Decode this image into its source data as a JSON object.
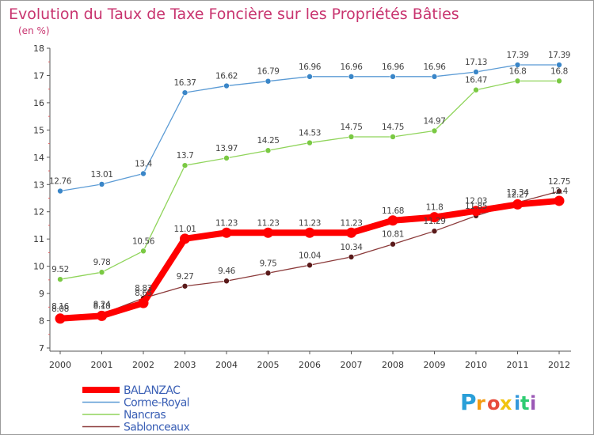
{
  "chart_data": {
    "type": "line",
    "title": "Evolution du Taux de Taxe Foncière sur les Propriétés Bâties",
    "subtitle": "(en %)",
    "xlabel": "",
    "ylabel": "",
    "ylim": [
      7,
      18
    ],
    "yticks": [
      "7",
      "8",
      "9",
      "10",
      "11",
      "12",
      "13",
      "14",
      "15",
      "16",
      "17",
      "18"
    ],
    "categories": [
      "2000",
      "2001",
      "2002",
      "2003",
      "2004",
      "2005",
      "2006",
      "2007",
      "2008",
      "2009",
      "2010",
      "2011",
      "2012"
    ],
    "series": [
      {
        "name": "Corme-Royal",
        "color": "#5b9bd5",
        "marker": "#3a86c8",
        "values": [
          12.76,
          13.01,
          13.4,
          16.37,
          16.62,
          16.79,
          16.96,
          16.96,
          16.96,
          16.96,
          17.13,
          17.39,
          17.39
        ],
        "labels": [
          "12.76",
          "13.01",
          "13.4",
          "16.37",
          "16.62",
          "16.79",
          "16.96",
          "16.96",
          "16.96",
          "16.96",
          "17.13",
          "17.39",
          "17.39"
        ]
      },
      {
        "name": "Nancras",
        "color": "#8fd45a",
        "marker": "#7ac943",
        "values": [
          9.52,
          9.78,
          10.56,
          13.7,
          13.97,
          14.25,
          14.53,
          14.75,
          14.75,
          14.97,
          16.47,
          16.8,
          16.8
        ],
        "labels": [
          "9.52",
          "9.78",
          "10.56",
          "13.7",
          "13.97",
          "14.25",
          "14.53",
          "14.75",
          "14.75",
          "14.97",
          "16.47",
          "16.8",
          "16.8"
        ]
      },
      {
        "name": "BALANZAC",
        "color": "#ff0000",
        "marker": "#ff0000",
        "values": [
          8.08,
          8.18,
          8.65,
          11.01,
          11.23,
          11.23,
          11.23,
          11.23,
          11.68,
          11.8,
          12.03,
          12.27,
          12.4
        ],
        "labels": [
          "8.08",
          "8.18",
          "8.65",
          "11.01",
          "11.23",
          "11.23",
          "11.23",
          "11.23",
          "11.68",
          "11.8",
          "12.03",
          "12.27",
          "12.4"
        ]
      },
      {
        "name": "Sablonceaux",
        "color": "#8b3a3a",
        "marker": "#5a1a1a",
        "values": [
          8.16,
          8.24,
          8.83,
          9.27,
          9.46,
          9.75,
          10.04,
          10.34,
          10.81,
          11.29,
          11.85,
          12.34,
          12.75
        ],
        "labels": [
          "8.16",
          "8.24",
          "8.83",
          "9.27",
          "9.46",
          "9.75",
          "10.04",
          "10.34",
          "10.81",
          "11.29",
          "11.85",
          "12.34",
          "12.75"
        ]
      }
    ],
    "legend": [
      "BALANZAC",
      "Corme-Royal",
      "Nancras",
      "Sablonceaux"
    ],
    "legend_position": "bottom-left",
    "grid": false
  },
  "logo": {
    "text": "Proxiti",
    "letters": [
      "P",
      "r",
      "o",
      "x",
      "i",
      "t",
      "i"
    ]
  },
  "colors": {
    "title": "#c8346f",
    "axis": "#555555",
    "tick_text": "#333333",
    "label_text": "#444444",
    "legend_text": "#3a5fb5"
  }
}
